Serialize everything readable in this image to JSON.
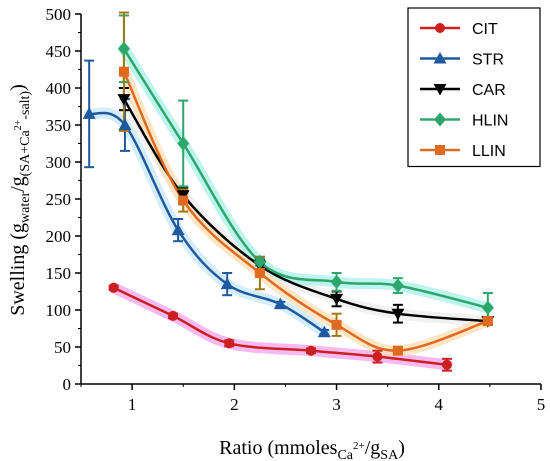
{
  "chart_data": {
    "type": "line",
    "title": "",
    "xlabel": "Ratio (mmoles_Ca2+/g_SA)",
    "xlabel_parts": {
      "main": "Ratio (mmoles",
      "sub1": "Ca",
      "sup1": "2+",
      "mid": "/g",
      "sub2": "SA",
      "end": ")"
    },
    "ylabel": "Swelling (g_water/g_(SA+Ca2+-salt))",
    "ylabel_parts": {
      "main": "Swelling (g",
      "sub1": "water",
      "mid": "/g",
      "sub2": "(SA+Ca",
      "sup2": "2+",
      "sub3": "-salt)",
      "end": ")"
    },
    "xlim": [
      0.5,
      5
    ],
    "ylim": [
      0,
      500
    ],
    "xticks": [
      "1",
      "2",
      "3",
      "4",
      "5"
    ],
    "yticks": [
      "0",
      "50",
      "100",
      "150",
      "200",
      "250",
      "300",
      "350",
      "400",
      "450",
      "500"
    ],
    "legend_position": "top-right",
    "grid": false,
    "series": [
      {
        "name": "CIT",
        "color": "#cc2020",
        "halo": "#f4a8ef",
        "marker": "circle",
        "x": [
          0.82,
          1.4,
          1.95,
          2.75,
          3.4,
          4.08
        ],
        "y": [
          130,
          92,
          55,
          45,
          37,
          26
        ],
        "err": [
          3,
          3,
          4,
          3,
          8,
          8
        ]
      },
      {
        "name": "STR",
        "color": "#1f5a9e",
        "halo": "#c9e8f8",
        "marker": "triangle",
        "x": [
          0.58,
          0.93,
          1.45,
          1.93,
          2.45,
          2.88
        ],
        "y": [
          365,
          350,
          208,
          135,
          108,
          70
        ],
        "err": [
          72,
          35,
          15,
          15,
          3,
          3
        ]
      },
      {
        "name": "CAR",
        "color": "#000000",
        "halo": "#eeeeee",
        "marker": "triangle-down",
        "x": [
          0.92,
          1.5,
          2.25,
          3.0,
          3.6,
          4.48
        ],
        "y": [
          385,
          255,
          160,
          115,
          95,
          85
        ],
        "err": [
          15,
          10,
          8,
          10,
          12,
          5
        ]
      },
      {
        "name": "HLIN",
        "color": "#2ca66a",
        "halo": "#aff0e8",
        "marker": "diamond",
        "x": [
          0.92,
          1.5,
          2.25,
          3.0,
          3.6,
          4.48
        ],
        "y": [
          453,
          325,
          165,
          138,
          133,
          103
        ],
        "err": [
          45,
          58,
          5,
          12,
          10,
          20
        ]
      },
      {
        "name": "LLIN",
        "color": "#e06a20",
        "halo": "#fbe0b8",
        "marker": "square",
        "x": [
          0.92,
          1.5,
          2.25,
          3.0,
          3.6,
          4.48
        ],
        "y": [
          422,
          248,
          150,
          80,
          45,
          85
        ],
        "err": [
          80,
          15,
          22,
          15,
          3,
          5
        ],
        "err_color": "#a07a10"
      }
    ]
  }
}
